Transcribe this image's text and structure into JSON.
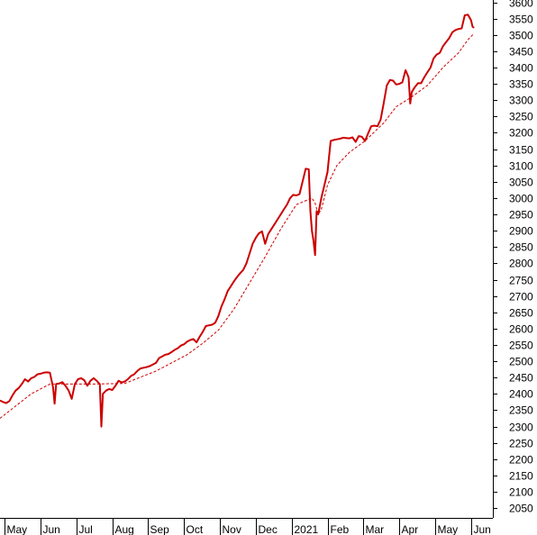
{
  "chart_data": {
    "type": "line",
    "title": "",
    "xlabel": "",
    "ylabel": "",
    "ylim": [
      2020,
      3607
    ],
    "grid": false,
    "legend": "none",
    "y_ticks": [
      2050,
      2100,
      2150,
      2200,
      2250,
      2300,
      2350,
      2400,
      2450,
      2500,
      2550,
      2600,
      2650,
      2700,
      2750,
      2800,
      2850,
      2900,
      2950,
      3000,
      3050,
      3100,
      3150,
      3200,
      3250,
      3300,
      3350,
      3400,
      3450,
      3500,
      3550,
      3600
    ],
    "x_ticks": [
      {
        "label": "May",
        "t": 1.5
      },
      {
        "label": "Jun",
        "t": 13.0
      },
      {
        "label": "Jul",
        "t": 24.5
      },
      {
        "label": "Aug",
        "t": 36.0
      },
      {
        "label": "Sep",
        "t": 47.5
      },
      {
        "label": "Oct",
        "t": 59.0
      },
      {
        "label": "Nov",
        "t": 70.5
      },
      {
        "label": "Dec",
        "t": 82.0
      },
      {
        "label": "2021",
        "t": 93.5
      },
      {
        "label": "Feb",
        "t": 105.0
      },
      {
        "label": "Mar",
        "t": 116.5
      },
      {
        "label": "Apr",
        "t": 128.0
      },
      {
        "label": "May",
        "t": 139.5
      },
      {
        "label": "Jun",
        "t": 151.0
      }
    ],
    "t_range": [
      0,
      158
    ],
    "colors": {
      "series": "#cc0000",
      "axis": "#000000",
      "background": "#ffffff"
    },
    "series": [
      {
        "style": "solid",
        "points": [
          [
            0,
            2380
          ],
          [
            1,
            2375
          ],
          [
            2,
            2372
          ],
          [
            3,
            2378
          ],
          [
            4,
            2395
          ],
          [
            5,
            2410
          ],
          [
            6,
            2418
          ],
          [
            7,
            2430
          ],
          [
            8,
            2445
          ],
          [
            9,
            2438
          ],
          [
            10,
            2448
          ],
          [
            11,
            2452
          ],
          [
            12,
            2460
          ],
          [
            13,
            2462
          ],
          [
            14,
            2465
          ],
          [
            15,
            2466
          ],
          [
            16,
            2465
          ],
          [
            17,
            2420
          ],
          [
            17.5,
            2370
          ],
          [
            18,
            2430
          ],
          [
            19,
            2432
          ],
          [
            20,
            2436
          ],
          [
            21,
            2425
          ],
          [
            22,
            2410
          ],
          [
            23,
            2385
          ],
          [
            24,
            2430
          ],
          [
            25,
            2445
          ],
          [
            26,
            2448
          ],
          [
            27,
            2442
          ],
          [
            28,
            2425
          ],
          [
            29,
            2440
          ],
          [
            30,
            2448
          ],
          [
            31,
            2440
          ],
          [
            32,
            2430
          ],
          [
            32.5,
            2300
          ],
          [
            33,
            2400
          ],
          [
            34,
            2410
          ],
          [
            35,
            2415
          ],
          [
            36,
            2412
          ],
          [
            37,
            2425
          ],
          [
            38,
            2440
          ],
          [
            39,
            2435
          ],
          [
            40,
            2438
          ],
          [
            41,
            2445
          ],
          [
            42,
            2455
          ],
          [
            43,
            2460
          ],
          [
            44,
            2470
          ],
          [
            45,
            2478
          ],
          [
            46,
            2480
          ],
          [
            47,
            2482
          ],
          [
            48,
            2485
          ],
          [
            49,
            2490
          ],
          [
            50,
            2495
          ],
          [
            51,
            2510
          ],
          [
            52,
            2515
          ],
          [
            53,
            2520
          ],
          [
            54,
            2522
          ],
          [
            55,
            2528
          ],
          [
            56,
            2535
          ],
          [
            57,
            2540
          ],
          [
            58,
            2548
          ],
          [
            59,
            2552
          ],
          [
            60,
            2560
          ],
          [
            61,
            2565
          ],
          [
            62,
            2568
          ],
          [
            63,
            2558
          ],
          [
            64,
            2575
          ],
          [
            65,
            2590
          ],
          [
            66,
            2608
          ],
          [
            67,
            2610
          ],
          [
            68,
            2612
          ],
          [
            69,
            2618
          ],
          [
            70,
            2638
          ],
          [
            71,
            2668
          ],
          [
            72,
            2690
          ],
          [
            73,
            2715
          ],
          [
            74,
            2730
          ],
          [
            75,
            2745
          ],
          [
            76,
            2758
          ],
          [
            77,
            2770
          ],
          [
            78,
            2780
          ],
          [
            79,
            2800
          ],
          [
            80,
            2830
          ],
          [
            81,
            2860
          ],
          [
            82,
            2878
          ],
          [
            83,
            2892
          ],
          [
            84,
            2898
          ],
          [
            85,
            2860
          ],
          [
            86,
            2890
          ],
          [
            87,
            2905
          ],
          [
            88,
            2920
          ],
          [
            89,
            2935
          ],
          [
            90,
            2950
          ],
          [
            91,
            2965
          ],
          [
            92,
            2980
          ],
          [
            93,
            3000
          ],
          [
            94,
            3010
          ],
          [
            95,
            3008
          ],
          [
            96,
            3012
          ],
          [
            97,
            3050
          ],
          [
            98,
            3090
          ],
          [
            99,
            3088
          ],
          [
            99.5,
            2960
          ],
          [
            100,
            2900
          ],
          [
            100.5,
            2870
          ],
          [
            101,
            2825
          ],
          [
            101.5,
            2960
          ],
          [
            102,
            2950
          ],
          [
            102.5,
            2975
          ],
          [
            103,
            3000
          ],
          [
            104,
            3040
          ],
          [
            105,
            3080
          ],
          [
            106,
            3175
          ],
          [
            107,
            3178
          ],
          [
            108,
            3180
          ],
          [
            109,
            3182
          ],
          [
            110,
            3185
          ],
          [
            111,
            3184
          ],
          [
            112,
            3183
          ],
          [
            113,
            3186
          ],
          [
            114,
            3172
          ],
          [
            115,
            3190
          ],
          [
            116,
            3188
          ],
          [
            117,
            3175
          ],
          [
            118,
            3198
          ],
          [
            119,
            3220
          ],
          [
            120,
            3222
          ],
          [
            121,
            3220
          ],
          [
            122,
            3240
          ],
          [
            123,
            3290
          ],
          [
            124,
            3345
          ],
          [
            125,
            3362
          ],
          [
            126,
            3360
          ],
          [
            127,
            3348
          ],
          [
            128,
            3350
          ],
          [
            129,
            3355
          ],
          [
            130,
            3392
          ],
          [
            131,
            3370
          ],
          [
            131.5,
            3290
          ],
          [
            132,
            3325
          ],
          [
            133,
            3340
          ],
          [
            134,
            3352
          ],
          [
            135,
            3352
          ],
          [
            136,
            3370
          ],
          [
            137,
            3385
          ],
          [
            138,
            3400
          ],
          [
            139,
            3428
          ],
          [
            140,
            3440
          ],
          [
            141,
            3445
          ],
          [
            142,
            3465
          ],
          [
            143,
            3478
          ],
          [
            144,
            3490
          ],
          [
            145,
            3508
          ],
          [
            146,
            3515
          ],
          [
            147,
            3518
          ],
          [
            148,
            3520
          ],
          [
            149,
            3560
          ],
          [
            150,
            3562
          ],
          [
            151,
            3545
          ],
          [
            151.5,
            3525
          ],
          [
            152,
            3522
          ]
        ]
      },
      {
        "style": "dashed",
        "points": [
          [
            0,
            2325
          ],
          [
            10,
            2400
          ],
          [
            16,
            2430
          ],
          [
            30,
            2430
          ],
          [
            40,
            2432
          ],
          [
            50,
            2470
          ],
          [
            60,
            2520
          ],
          [
            65,
            2555
          ],
          [
            70,
            2595
          ],
          [
            75,
            2660
          ],
          [
            80,
            2740
          ],
          [
            85,
            2820
          ],
          [
            90,
            2905
          ],
          [
            95,
            2980
          ],
          [
            100,
            3000
          ],
          [
            101,
            2985
          ],
          [
            102,
            2950
          ],
          [
            103,
            2965
          ],
          [
            105,
            3040
          ],
          [
            108,
            3100
          ],
          [
            112,
            3140
          ],
          [
            117,
            3175
          ],
          [
            123,
            3230
          ],
          [
            127,
            3280
          ],
          [
            132,
            3310
          ],
          [
            137,
            3345
          ],
          [
            142,
            3400
          ],
          [
            147,
            3445
          ],
          [
            150,
            3485
          ],
          [
            152,
            3505
          ]
        ]
      }
    ]
  }
}
